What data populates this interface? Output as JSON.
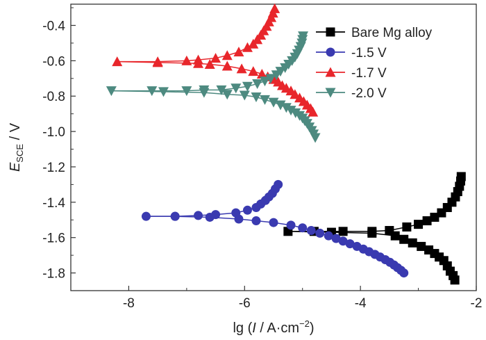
{
  "chart_data": {
    "type": "line",
    "xlabel": {
      "prefix": "lg (",
      "italic": "I",
      "middle": " / A·cm",
      "sup": "−2",
      "suffix": ")"
    },
    "ylabel": {
      "main": "E",
      "sub": "SCE",
      "suffix": " / V"
    },
    "xlim": [
      -9,
      -2
    ],
    "ylim": [
      -1.9,
      -0.28
    ],
    "xticks": [
      -8,
      -6,
      -4,
      -2
    ],
    "xtick_labels": [
      "-8",
      "-6",
      "-4",
      "-2"
    ],
    "yticks": [
      -1.8,
      -1.6,
      -1.4,
      -1.2,
      -1.0,
      -0.8,
      -0.6,
      -0.4
    ],
    "ytick_labels": [
      "-1.8",
      "-1.6",
      "-1.4",
      "-1.2",
      "-1.0",
      "-0.8",
      "-0.6",
      "-0.4"
    ],
    "legend_position": "top-right",
    "series": [
      {
        "name": "Bare Mg alloy",
        "color": "#000000",
        "marker": "square",
        "anodic": [
          [
            -5.25,
            -1.565
          ],
          [
            -4.8,
            -1.565
          ],
          [
            -4.3,
            -1.565
          ],
          [
            -3.8,
            -1.565
          ],
          [
            -3.5,
            -1.56
          ],
          [
            -3.2,
            -1.54
          ],
          [
            -3.0,
            -1.525
          ],
          [
            -2.85,
            -1.505
          ],
          [
            -2.72,
            -1.485
          ],
          [
            -2.6,
            -1.46
          ],
          [
            -2.5,
            -1.43
          ],
          [
            -2.42,
            -1.4
          ],
          [
            -2.36,
            -1.37
          ],
          [
            -2.32,
            -1.34
          ],
          [
            -2.29,
            -1.31
          ],
          [
            -2.27,
            -1.28
          ],
          [
            -2.26,
            -1.255
          ]
        ],
        "cathodic": [
          [
            -5.25,
            -1.565
          ],
          [
            -4.5,
            -1.57
          ],
          [
            -3.8,
            -1.575
          ],
          [
            -3.4,
            -1.59
          ],
          [
            -3.25,
            -1.61
          ],
          [
            -3.1,
            -1.63
          ],
          [
            -2.95,
            -1.65
          ],
          [
            -2.82,
            -1.67
          ],
          [
            -2.72,
            -1.69
          ],
          [
            -2.64,
            -1.71
          ],
          [
            -2.56,
            -1.73
          ],
          [
            -2.5,
            -1.76
          ],
          [
            -2.45,
            -1.79
          ],
          [
            -2.4,
            -1.815
          ],
          [
            -2.37,
            -1.84
          ]
        ]
      },
      {
        "name": "-1.5 V",
        "color": "#3a3ab0",
        "marker": "circle",
        "anodic": [
          [
            -7.7,
            -1.48
          ],
          [
            -7.2,
            -1.48
          ],
          [
            -6.8,
            -1.475
          ],
          [
            -6.5,
            -1.47
          ],
          [
            -6.15,
            -1.46
          ],
          [
            -5.95,
            -1.445
          ],
          [
            -5.8,
            -1.43
          ],
          [
            -5.72,
            -1.41
          ],
          [
            -5.64,
            -1.39
          ],
          [
            -5.58,
            -1.37
          ],
          [
            -5.52,
            -1.35
          ],
          [
            -5.47,
            -1.325
          ],
          [
            -5.42,
            -1.3
          ]
        ],
        "cathodic": [
          [
            -7.7,
            -1.48
          ],
          [
            -7.2,
            -1.48
          ],
          [
            -6.6,
            -1.485
          ],
          [
            -6.1,
            -1.495
          ],
          [
            -5.8,
            -1.505
          ],
          [
            -5.5,
            -1.515
          ],
          [
            -5.2,
            -1.53
          ],
          [
            -5.0,
            -1.545
          ],
          [
            -4.85,
            -1.56
          ],
          [
            -4.7,
            -1.575
          ],
          [
            -4.55,
            -1.59
          ],
          [
            -4.42,
            -1.605
          ],
          [
            -4.3,
            -1.62
          ],
          [
            -4.18,
            -1.635
          ],
          [
            -4.06,
            -1.65
          ],
          [
            -3.95,
            -1.665
          ],
          [
            -3.85,
            -1.68
          ],
          [
            -3.75,
            -1.695
          ],
          [
            -3.66,
            -1.71
          ],
          [
            -3.57,
            -1.725
          ],
          [
            -3.49,
            -1.74
          ],
          [
            -3.42,
            -1.755
          ],
          [
            -3.36,
            -1.77
          ],
          [
            -3.3,
            -1.785
          ],
          [
            -3.25,
            -1.8
          ]
        ]
      },
      {
        "name": "-1.7 V",
        "color": "#e8262b",
        "marker": "triangle-up",
        "anodic": [
          [
            -8.2,
            -0.605
          ],
          [
            -7.5,
            -0.605
          ],
          [
            -7.0,
            -0.6
          ],
          [
            -6.8,
            -0.595
          ],
          [
            -6.5,
            -0.585
          ],
          [
            -6.3,
            -0.57
          ],
          [
            -6.1,
            -0.55
          ],
          [
            -5.95,
            -0.525
          ],
          [
            -5.85,
            -0.505
          ],
          [
            -5.78,
            -0.48
          ],
          [
            -5.72,
            -0.455
          ],
          [
            -5.67,
            -0.43
          ],
          [
            -5.62,
            -0.405
          ],
          [
            -5.58,
            -0.38
          ],
          [
            -5.54,
            -0.355
          ],
          [
            -5.51,
            -0.33
          ],
          [
            -5.48,
            -0.305
          ]
        ],
        "cathodic": [
          [
            -8.2,
            -0.605
          ],
          [
            -7.5,
            -0.61
          ],
          [
            -6.8,
            -0.615
          ],
          [
            -6.6,
            -0.62
          ],
          [
            -6.3,
            -0.63
          ],
          [
            -6.05,
            -0.645
          ],
          [
            -5.85,
            -0.66
          ],
          [
            -5.7,
            -0.675
          ],
          [
            -5.6,
            -0.69
          ],
          [
            -5.5,
            -0.705
          ],
          [
            -5.42,
            -0.72
          ],
          [
            -5.35,
            -0.74
          ],
          [
            -5.28,
            -0.755
          ],
          [
            -5.2,
            -0.77
          ],
          [
            -5.13,
            -0.79
          ],
          [
            -5.05,
            -0.81
          ],
          [
            -4.98,
            -0.83
          ],
          [
            -4.92,
            -0.85
          ],
          [
            -4.86,
            -0.87
          ],
          [
            -4.82,
            -0.89
          ]
        ]
      },
      {
        "name": "-2.0 V",
        "color": "#4d8a80",
        "marker": "triangle-down",
        "anodic": [
          [
            -8.3,
            -0.77
          ],
          [
            -7.6,
            -0.77
          ],
          [
            -7.0,
            -0.77
          ],
          [
            -6.7,
            -0.765
          ],
          [
            -6.4,
            -0.765
          ],
          [
            -6.15,
            -0.755
          ],
          [
            -5.95,
            -0.745
          ],
          [
            -5.78,
            -0.73
          ],
          [
            -5.65,
            -0.715
          ],
          [
            -5.55,
            -0.7
          ],
          [
            -5.45,
            -0.68
          ],
          [
            -5.38,
            -0.66
          ],
          [
            -5.3,
            -0.64
          ],
          [
            -5.24,
            -0.62
          ],
          [
            -5.18,
            -0.6
          ],
          [
            -5.13,
            -0.58
          ],
          [
            -5.09,
            -0.56
          ],
          [
            -5.06,
            -0.54
          ],
          [
            -5.03,
            -0.52
          ],
          [
            -5.01,
            -0.5
          ],
          [
            -5.0,
            -0.48
          ],
          [
            -4.99,
            -0.46
          ]
        ],
        "cathodic": [
          [
            -8.3,
            -0.77
          ],
          [
            -7.4,
            -0.775
          ],
          [
            -6.7,
            -0.78
          ],
          [
            -6.3,
            -0.79
          ],
          [
            -6.0,
            -0.795
          ],
          [
            -5.8,
            -0.805
          ],
          [
            -5.65,
            -0.82
          ],
          [
            -5.5,
            -0.835
          ],
          [
            -5.38,
            -0.85
          ],
          [
            -5.28,
            -0.865
          ],
          [
            -5.2,
            -0.88
          ],
          [
            -5.12,
            -0.895
          ],
          [
            -5.05,
            -0.91
          ],
          [
            -5.0,
            -0.925
          ],
          [
            -4.96,
            -0.94
          ],
          [
            -4.92,
            -0.955
          ],
          [
            -4.88,
            -0.975
          ],
          [
            -4.84,
            -0.995
          ],
          [
            -4.81,
            -1.015
          ],
          [
            -4.78,
            -1.035
          ]
        ]
      }
    ]
  }
}
